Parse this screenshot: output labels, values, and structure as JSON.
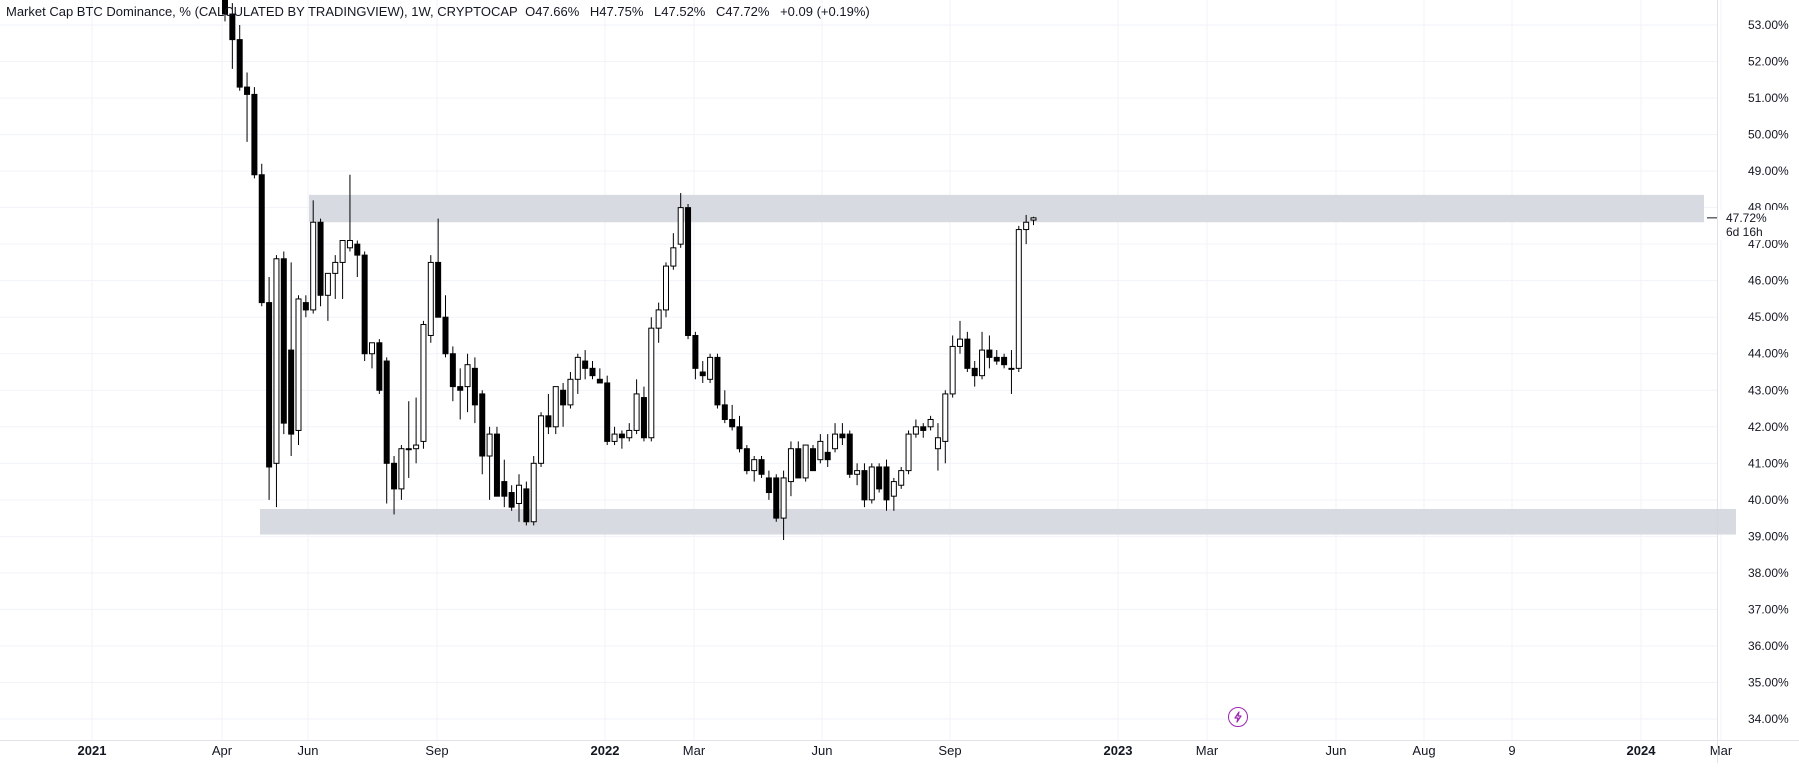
{
  "legend": {
    "symbol": "Market Cap BTC Dominance, % (CALCULATED BY TRADINGVIEW), 1W, CRYPTOCAP",
    "open": "O47.66%",
    "high": "H47.75%",
    "low": "L47.52%",
    "close": "C47.72%",
    "change": "+0.09 (+0.19%)"
  },
  "price_tag": {
    "last": "47.72%",
    "countdown": "6d 16h"
  },
  "colors": {
    "up_body": "#ffffff",
    "down_body": "#000000",
    "wick": "#000000",
    "zone": "#d1d4dc",
    "grid": "#f0f3fa",
    "text": "#131722",
    "accent": "#9c27b0"
  },
  "icons": {
    "flash": "lightning-icon"
  },
  "chart_data": {
    "type": "candlestick",
    "title": "Market Cap BTC Dominance, % (CALCULATED BY TRADINGVIEW), 1W, CRYPTOCAP",
    "x_axis_labels": [
      "2021",
      "Apr",
      "Jun",
      "Sep",
      "2022",
      "Mar",
      "Jun",
      "Sep",
      "2023",
      "Mar",
      "Jun",
      "Aug",
      "9",
      "2024",
      "Mar"
    ],
    "y_axis_labels": [
      "53.00%",
      "52.00%",
      "51.00%",
      "50.00%",
      "49.00%",
      "48.00%",
      "47.00%",
      "46.00%",
      "45.00%",
      "44.00%",
      "43.00%",
      "42.00%",
      "41.00%",
      "40.00%",
      "39.00%",
      "38.00%",
      "37.00%",
      "36.00%",
      "35.00%",
      "34.00%"
    ],
    "ylim": [
      33.6,
      53.5
    ],
    "grid": true,
    "zones": [
      {
        "from": 47.6,
        "to": 48.35
      },
      {
        "from": 39.05,
        "to": 39.75
      }
    ],
    "candles": [
      {
        "o": 54.0,
        "h": 54.5,
        "l": 53.1,
        "c": 53.3
      },
      {
        "o": 53.3,
        "h": 53.6,
        "l": 51.8,
        "c": 52.6
      },
      {
        "o": 52.6,
        "h": 53.0,
        "l": 51.2,
        "c": 51.3
      },
      {
        "o": 51.3,
        "h": 51.7,
        "l": 49.8,
        "c": 51.1
      },
      {
        "o": 51.1,
        "h": 51.3,
        "l": 48.8,
        "c": 48.9
      },
      {
        "o": 48.9,
        "h": 49.2,
        "l": 45.3,
        "c": 45.4
      },
      {
        "o": 45.4,
        "h": 46.1,
        "l": 40.0,
        "c": 40.9
      },
      {
        "o": 41.0,
        "h": 46.7,
        "l": 39.8,
        "c": 46.6
      },
      {
        "o": 46.6,
        "h": 46.8,
        "l": 41.8,
        "c": 42.1
      },
      {
        "o": 44.1,
        "h": 46.5,
        "l": 41.2,
        "c": 41.8
      },
      {
        "o": 41.9,
        "h": 45.6,
        "l": 41.5,
        "c": 45.5
      },
      {
        "o": 45.4,
        "h": 45.6,
        "l": 45.0,
        "c": 45.2
      },
      {
        "o": 45.2,
        "h": 48.2,
        "l": 45.1,
        "c": 47.6
      },
      {
        "o": 47.6,
        "h": 47.7,
        "l": 45.3,
        "c": 45.6
      },
      {
        "o": 45.6,
        "h": 46.1,
        "l": 44.9,
        "c": 46.2
      },
      {
        "o": 46.2,
        "h": 46.7,
        "l": 45.5,
        "c": 46.5
      },
      {
        "o": 46.5,
        "h": 47.1,
        "l": 45.5,
        "c": 47.1
      },
      {
        "o": 46.9,
        "h": 48.9,
        "l": 46.8,
        "c": 47.1
      },
      {
        "o": 47.0,
        "h": 47.1,
        "l": 46.1,
        "c": 46.7
      },
      {
        "o": 46.7,
        "h": 46.8,
        "l": 43.8,
        "c": 44.0
      },
      {
        "o": 44.0,
        "h": 44.3,
        "l": 43.6,
        "c": 44.3
      },
      {
        "o": 44.3,
        "h": 44.4,
        "l": 42.9,
        "c": 43.0
      },
      {
        "o": 43.8,
        "h": 43.9,
        "l": 39.9,
        "c": 41.0
      },
      {
        "o": 41.0,
        "h": 41.2,
        "l": 39.6,
        "c": 40.3
      },
      {
        "o": 40.3,
        "h": 41.5,
        "l": 40.0,
        "c": 41.4
      },
      {
        "o": 41.4,
        "h": 42.7,
        "l": 40.6,
        "c": 41.4
      },
      {
        "o": 41.4,
        "h": 42.8,
        "l": 41.0,
        "c": 41.5
      },
      {
        "o": 41.6,
        "h": 44.9,
        "l": 41.4,
        "c": 44.8
      },
      {
        "o": 44.5,
        "h": 46.7,
        "l": 44.3,
        "c": 46.5
      },
      {
        "o": 46.5,
        "h": 47.7,
        "l": 45.0,
        "c": 45.0
      },
      {
        "o": 45.0,
        "h": 45.6,
        "l": 43.9,
        "c": 44.0
      },
      {
        "o": 44.0,
        "h": 44.2,
        "l": 42.7,
        "c": 43.1
      },
      {
        "o": 43.1,
        "h": 43.6,
        "l": 42.2,
        "c": 43.0
      },
      {
        "o": 43.1,
        "h": 44.0,
        "l": 42.4,
        "c": 43.7
      },
      {
        "o": 43.6,
        "h": 43.9,
        "l": 42.1,
        "c": 42.6
      },
      {
        "o": 42.9,
        "h": 43.0,
        "l": 40.7,
        "c": 41.2
      },
      {
        "o": 41.2,
        "h": 42.0,
        "l": 40.0,
        "c": 41.8
      },
      {
        "o": 41.8,
        "h": 42.0,
        "l": 40.1,
        "c": 40.1
      },
      {
        "o": 40.5,
        "h": 41.1,
        "l": 39.8,
        "c": 40.1
      },
      {
        "o": 40.2,
        "h": 40.4,
        "l": 39.7,
        "c": 39.8
      },
      {
        "o": 39.9,
        "h": 40.7,
        "l": 39.4,
        "c": 40.4
      },
      {
        "o": 40.3,
        "h": 40.5,
        "l": 39.3,
        "c": 39.4
      },
      {
        "o": 39.4,
        "h": 41.2,
        "l": 39.3,
        "c": 41.0
      },
      {
        "o": 41.0,
        "h": 42.4,
        "l": 40.9,
        "c": 42.3
      },
      {
        "o": 42.3,
        "h": 42.9,
        "l": 41.8,
        "c": 42.0
      },
      {
        "o": 42.0,
        "h": 43.1,
        "l": 41.8,
        "c": 43.1
      },
      {
        "o": 43.0,
        "h": 43.2,
        "l": 42.0,
        "c": 42.6
      },
      {
        "o": 42.6,
        "h": 43.5,
        "l": 42.5,
        "c": 43.3
      },
      {
        "o": 43.3,
        "h": 44.0,
        "l": 42.9,
        "c": 43.9
      },
      {
        "o": 43.8,
        "h": 44.1,
        "l": 43.3,
        "c": 43.6
      },
      {
        "o": 43.6,
        "h": 43.8,
        "l": 43.3,
        "c": 43.4
      },
      {
        "o": 43.3,
        "h": 43.6,
        "l": 43.2,
        "c": 43.2
      },
      {
        "o": 43.2,
        "h": 43.4,
        "l": 41.5,
        "c": 41.6
      },
      {
        "o": 41.6,
        "h": 42.0,
        "l": 41.5,
        "c": 41.8
      },
      {
        "o": 41.8,
        "h": 41.9,
        "l": 41.4,
        "c": 41.7
      },
      {
        "o": 41.7,
        "h": 42.1,
        "l": 41.6,
        "c": 41.9
      },
      {
        "o": 41.9,
        "h": 43.3,
        "l": 41.8,
        "c": 42.9
      },
      {
        "o": 42.8,
        "h": 43.1,
        "l": 41.6,
        "c": 41.7
      },
      {
        "o": 41.7,
        "h": 45.0,
        "l": 41.6,
        "c": 44.7
      },
      {
        "o": 44.7,
        "h": 45.4,
        "l": 44.3,
        "c": 45.2
      },
      {
        "o": 45.2,
        "h": 46.5,
        "l": 45.0,
        "c": 46.4
      },
      {
        "o": 46.4,
        "h": 47.3,
        "l": 46.3,
        "c": 46.9
      },
      {
        "o": 47.0,
        "h": 48.4,
        "l": 46.9,
        "c": 48.0
      },
      {
        "o": 48.0,
        "h": 48.1,
        "l": 44.4,
        "c": 44.5
      },
      {
        "o": 44.5,
        "h": 44.6,
        "l": 43.3,
        "c": 43.6
      },
      {
        "o": 43.5,
        "h": 43.8,
        "l": 43.2,
        "c": 43.4
      },
      {
        "o": 43.3,
        "h": 44.0,
        "l": 43.2,
        "c": 43.9
      },
      {
        "o": 43.9,
        "h": 44.0,
        "l": 42.5,
        "c": 42.6
      },
      {
        "o": 42.6,
        "h": 43.0,
        "l": 42.1,
        "c": 42.2
      },
      {
        "o": 42.2,
        "h": 42.6,
        "l": 41.9,
        "c": 42.0
      },
      {
        "o": 42.0,
        "h": 42.3,
        "l": 41.3,
        "c": 41.4
      },
      {
        "o": 41.4,
        "h": 41.5,
        "l": 40.7,
        "c": 40.8
      },
      {
        "o": 40.8,
        "h": 41.2,
        "l": 40.5,
        "c": 41.1
      },
      {
        "o": 41.1,
        "h": 41.2,
        "l": 40.6,
        "c": 40.7
      },
      {
        "o": 40.6,
        "h": 40.8,
        "l": 40.0,
        "c": 40.2
      },
      {
        "o": 40.6,
        "h": 40.7,
        "l": 39.4,
        "c": 39.5
      },
      {
        "o": 39.5,
        "h": 40.8,
        "l": 38.9,
        "c": 40.6
      },
      {
        "o": 40.5,
        "h": 41.6,
        "l": 40.1,
        "c": 41.4
      },
      {
        "o": 41.4,
        "h": 41.6,
        "l": 40.6,
        "c": 40.6
      },
      {
        "o": 40.6,
        "h": 41.5,
        "l": 40.5,
        "c": 41.5
      },
      {
        "o": 41.4,
        "h": 41.5,
        "l": 40.8,
        "c": 40.8
      },
      {
        "o": 41.1,
        "h": 41.8,
        "l": 41.0,
        "c": 41.6
      },
      {
        "o": 41.3,
        "h": 41.8,
        "l": 40.9,
        "c": 41.1
      },
      {
        "o": 41.4,
        "h": 42.1,
        "l": 41.3,
        "c": 41.8
      },
      {
        "o": 41.8,
        "h": 42.1,
        "l": 41.5,
        "c": 41.7
      },
      {
        "o": 41.8,
        "h": 41.9,
        "l": 40.6,
        "c": 40.7
      },
      {
        "o": 40.7,
        "h": 41.0,
        "l": 40.4,
        "c": 40.8
      },
      {
        "o": 40.8,
        "h": 41.0,
        "l": 39.8,
        "c": 40.0
      },
      {
        "o": 40.0,
        "h": 41.0,
        "l": 39.9,
        "c": 40.9
      },
      {
        "o": 40.9,
        "h": 41.0,
        "l": 40.2,
        "c": 40.3
      },
      {
        "o": 40.9,
        "h": 41.1,
        "l": 39.7,
        "c": 40.0
      },
      {
        "o": 40.1,
        "h": 40.6,
        "l": 39.7,
        "c": 40.5
      },
      {
        "o": 40.4,
        "h": 40.9,
        "l": 40.3,
        "c": 40.8
      },
      {
        "o": 40.8,
        "h": 41.9,
        "l": 40.7,
        "c": 41.8
      },
      {
        "o": 41.8,
        "h": 42.2,
        "l": 41.7,
        "c": 42.0
      },
      {
        "o": 42.0,
        "h": 42.1,
        "l": 41.7,
        "c": 41.9
      },
      {
        "o": 42.0,
        "h": 42.3,
        "l": 41.9,
        "c": 42.2
      },
      {
        "o": 41.4,
        "h": 42.1,
        "l": 40.8,
        "c": 41.7
      },
      {
        "o": 41.6,
        "h": 43.0,
        "l": 41.0,
        "c": 42.9
      },
      {
        "o": 42.9,
        "h": 44.5,
        "l": 42.8,
        "c": 44.2
      },
      {
        "o": 44.2,
        "h": 44.9,
        "l": 44.0,
        "c": 44.4
      },
      {
        "o": 44.4,
        "h": 44.6,
        "l": 43.5,
        "c": 43.6
      },
      {
        "o": 43.6,
        "h": 43.8,
        "l": 43.1,
        "c": 43.4
      },
      {
        "o": 43.4,
        "h": 44.6,
        "l": 43.3,
        "c": 44.1
      },
      {
        "o": 44.1,
        "h": 44.5,
        "l": 43.6,
        "c": 43.9
      },
      {
        "o": 43.9,
        "h": 44.1,
        "l": 43.7,
        "c": 43.8
      },
      {
        "o": 43.9,
        "h": 44.0,
        "l": 43.6,
        "c": 43.7
      },
      {
        "o": 43.6,
        "h": 44.1,
        "l": 42.9,
        "c": 43.6
      },
      {
        "o": 43.6,
        "h": 47.5,
        "l": 43.5,
        "c": 47.4
      },
      {
        "o": 47.4,
        "h": 47.8,
        "l": 47.0,
        "c": 47.6
      },
      {
        "o": 47.66,
        "h": 47.75,
        "l": 47.52,
        "c": 47.72
      }
    ]
  }
}
